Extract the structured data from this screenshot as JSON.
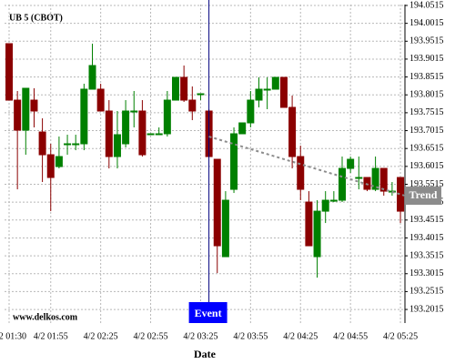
{
  "chart_data": {
    "type": "candlestick",
    "title": "UB 5 (CBOT)",
    "xlabel": "Date",
    "watermark": "www.delkos.com",
    "categories": [
      "4/2 01:30",
      null,
      null,
      null,
      null,
      "4/2 01:55",
      null,
      null,
      null,
      null,
      null,
      "4/2 02:25",
      null,
      null,
      null,
      null,
      null,
      "4/2 02:55",
      null,
      null,
      null,
      null,
      null,
      "4/2 03:25",
      null,
      null,
      null,
      null,
      null,
      "4/2 03:55",
      null,
      null,
      null,
      null,
      null,
      "4/2 04:25",
      null,
      null,
      null,
      null,
      null,
      "4/2 04:55",
      null,
      null,
      null,
      null,
      null,
      "4/2 05:25"
    ],
    "open": [
      193.9446,
      193.7868,
      193.7028,
      193.7868,
      193.6977,
      193.6341,
      193.601,
      193.6647,
      193.6647,
      193.6647,
      193.8174,
      193.8174,
      193.7563,
      193.629,
      193.6647,
      193.7563,
      193.7563,
      193.6927,
      193.6927,
      193.6927,
      193.7868,
      193.8504,
      193.7868,
      193.8046,
      193.7563,
      193.6214,
      193.3491,
      193.5374,
      193.6927,
      193.7232,
      193.7868,
      193.8174,
      193.8174,
      193.8504,
      193.7665,
      193.629,
      193.5018,
      193.3491,
      193.4763,
      193.5069,
      193.5069,
      193.5959,
      193.5705,
      193.5705,
      193.5374,
      193.5959,
      193.5323,
      193.5705
    ],
    "high": [
      193.9446,
      193.8123,
      193.8199,
      193.8199,
      193.7359,
      193.6647,
      193.685,
      193.6901,
      193.6901,
      193.8326,
      193.9446,
      193.8326,
      193.7868,
      193.7563,
      193.7868,
      193.8123,
      193.7868,
      193.6927,
      193.7105,
      193.8123,
      193.8504,
      193.8835,
      193.825,
      193.8046,
      193.7614,
      193.6214,
      193.5323,
      193.7105,
      193.7232,
      193.8123,
      193.8504,
      193.8504,
      193.8504,
      193.8504,
      193.7995,
      193.6596,
      193.5323,
      193.5069,
      193.5323,
      193.5323,
      193.629,
      193.629,
      193.629,
      193.5705,
      193.629,
      193.5959,
      193.5578,
      193.5705
    ],
    "low": [
      193.7868,
      193.5374,
      193.6341,
      193.7105,
      193.5578,
      193.4763,
      193.5959,
      193.6341,
      193.6468,
      193.6468,
      193.8174,
      193.7563,
      193.5959,
      193.5959,
      193.6545,
      193.7105,
      193.629,
      193.6927,
      193.6901,
      193.685,
      193.7868,
      193.7817,
      193.7308,
      193.7868,
      193.629,
      193.3033,
      193.3491,
      193.5272,
      193.6927,
      193.7105,
      193.7665,
      193.7614,
      193.8174,
      193.7665,
      193.5959,
      193.5069,
      193.3796,
      193.2905,
      193.4432,
      193.5018,
      193.5018,
      193.5832,
      193.5374,
      193.5323,
      193.5323,
      193.5196,
      193.5196,
      193.4432
    ],
    "close": [
      193.7868,
      193.7028,
      193.8199,
      193.7563,
      193.6341,
      193.5705,
      193.629,
      193.6647,
      193.6647,
      193.8174,
      193.8835,
      193.7563,
      193.629,
      193.6901,
      193.7563,
      193.7563,
      193.6341,
      193.6927,
      193.6927,
      193.7868,
      193.8504,
      193.7868,
      193.7563,
      193.8046,
      193.629,
      193.3796,
      193.5069,
      193.6927,
      193.7232,
      193.7868,
      193.8174,
      193.8174,
      193.8504,
      193.7665,
      193.629,
      193.5374,
      193.3796,
      193.4763,
      193.5069,
      193.5069,
      193.5959,
      193.6214,
      193.5705,
      193.5374,
      193.5959,
      193.5323,
      193.5323,
      193.4763
    ],
    "up_color": "#008000",
    "down_color": "#8b0000",
    "ylim": [
      193.1635,
      194.054
    ],
    "yticks": [
      194.0515,
      194.0015,
      193.9515,
      193.9015,
      193.8515,
      193.8015,
      193.7515,
      193.7015,
      193.6515,
      193.6015,
      193.5515,
      193.5015,
      193.4515,
      193.4015,
      193.3515,
      193.3015,
      193.2515,
      193.2015
    ],
    "grid": true,
    "event": {
      "label": "Event",
      "color": "#0000ff"
    },
    "trend": {
      "label": "Trend",
      "values": [
        193.685,
        193.5196
      ],
      "color": "#8c8c8c"
    }
  }
}
